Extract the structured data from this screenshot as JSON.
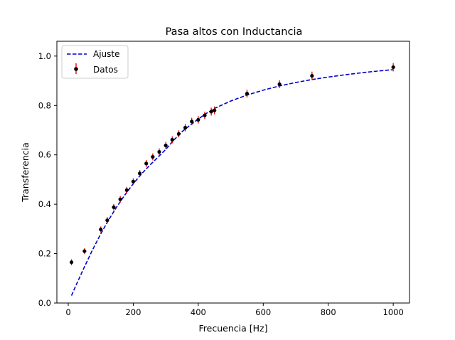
{
  "chart_data": {
    "type": "scatter",
    "title": "Pasa altos con Inductancia",
    "xlabel": "Frecuencia [Hz]",
    "ylabel": "Transferencia",
    "xlim": [
      -35,
      1050
    ],
    "ylim": [
      0.0,
      1.06
    ],
    "xticks": [
      0,
      200,
      400,
      600,
      800,
      1000
    ],
    "xtick_labels": [
      "0",
      "200",
      "400",
      "600",
      "800",
      "1000"
    ],
    "yticks": [
      0.0,
      0.2,
      0.4,
      0.6,
      0.8,
      1.0
    ],
    "ytick_labels": [
      "0.0",
      "0.2",
      "0.4",
      "0.6",
      "0.8",
      "1.0"
    ],
    "grid": false,
    "legend_position": "top-left",
    "series": [
      {
        "name": "Ajuste",
        "style": "dashed-line",
        "color": "#0000cc",
        "x": [
          10,
          25,
          50,
          75,
          100,
          125,
          150,
          175,
          200,
          225,
          250,
          275,
          300,
          325,
          350,
          375,
          400,
          425,
          450,
          500,
          550,
          600,
          650,
          700,
          750,
          800,
          850,
          900,
          950,
          1000
        ],
        "y": [
          0.03,
          0.075,
          0.147,
          0.216,
          0.28,
          0.338,
          0.391,
          0.439,
          0.483,
          0.522,
          0.557,
          0.589,
          0.622,
          0.66,
          0.694,
          0.72,
          0.745,
          0.768,
          0.788,
          0.818,
          0.842,
          0.862,
          0.879,
          0.893,
          0.905,
          0.915,
          0.924,
          0.932,
          0.939,
          0.945
        ]
      },
      {
        "name": "Datos",
        "style": "errorbar-points",
        "marker_color": "#000000",
        "errorbar_color": "#ff0000",
        "x": [
          10,
          50,
          100,
          120,
          140,
          160,
          180,
          200,
          220,
          240,
          260,
          280,
          300,
          320,
          340,
          360,
          380,
          400,
          420,
          440,
          450,
          550,
          650,
          750,
          1000
        ],
        "y": [
          0.165,
          0.21,
          0.298,
          0.335,
          0.388,
          0.42,
          0.457,
          0.492,
          0.525,
          0.565,
          0.592,
          0.612,
          0.638,
          0.661,
          0.685,
          0.71,
          0.735,
          0.742,
          0.76,
          0.775,
          0.78,
          0.848,
          0.886,
          0.92,
          0.955
        ],
        "yerr": [
          0.012,
          0.012,
          0.012,
          0.013,
          0.013,
          0.013,
          0.013,
          0.013,
          0.013,
          0.014,
          0.014,
          0.014,
          0.014,
          0.014,
          0.014,
          0.015,
          0.015,
          0.015,
          0.015,
          0.016,
          0.016,
          0.016,
          0.016,
          0.017,
          0.017
        ]
      }
    ]
  }
}
